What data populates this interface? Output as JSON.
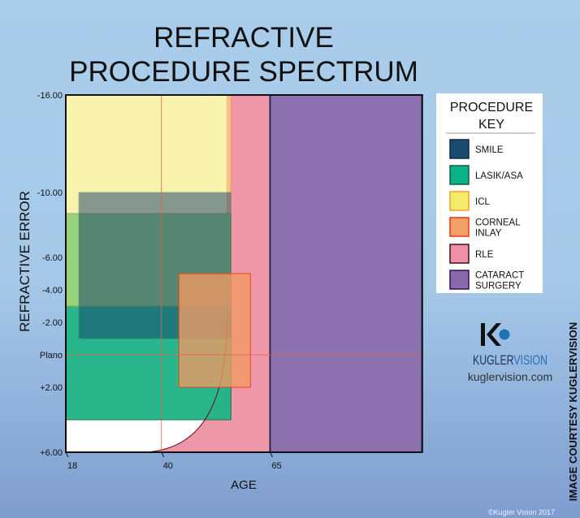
{
  "title_lines": [
    "REFRACTIVE",
    "PROCEDURE SPECTRUM"
  ],
  "chart_data": {
    "type": "region-diagram",
    "xlabel": "AGE",
    "ylabel": "REFRACTIVE ERROR",
    "xlim": [
      18,
      100
    ],
    "ylim": [
      -16,
      6
    ],
    "x_ticks": [
      {
        "value": 18,
        "label": "18"
      },
      {
        "value": 40,
        "label": "40"
      },
      {
        "value": 65,
        "label": "65"
      }
    ],
    "y_ticks": [
      {
        "value": -16,
        "label": "-16.00"
      },
      {
        "value": -10,
        "label": "-10.00"
      },
      {
        "value": -6,
        "label": "-6.00"
      },
      {
        "value": -4,
        "label": "-4.00"
      },
      {
        "value": -2,
        "label": "-2.00"
      },
      {
        "value": 0,
        "label": "Plano"
      },
      {
        "value": 2,
        "label": "+2.00"
      },
      {
        "value": 6,
        "label": "+6.00"
      }
    ],
    "reference_lines": {
      "age": 40,
      "refraction": 0
    },
    "regions": [
      {
        "name": "RLE",
        "age": [
          55,
          65
        ],
        "refraction": [
          -16,
          6
        ],
        "curve_from_age": 35,
        "color": "#ee97a8"
      },
      {
        "name": "LASIK/ASA",
        "age": [
          18,
          56
        ],
        "refraction": [
          -8.7,
          4
        ],
        "color": "#22b48a"
      },
      {
        "name": "ICL",
        "age": [
          18,
          56
        ],
        "refraction": [
          -16,
          -3
        ],
        "color": "#f4ea6c"
      },
      {
        "name": "SMILE",
        "age": [
          21,
          56
        ],
        "refraction": [
          -10,
          -1
        ],
        "color": "#173f6b"
      },
      {
        "name": "CORNEAL INLAY",
        "age": [
          44,
          60.5
        ],
        "refraction": [
          -5,
          2
        ],
        "color": "#f39a63"
      },
      {
        "name": "CATARACT SURGERY",
        "age": [
          65,
          100
        ],
        "refraction": [
          -16,
          6
        ],
        "color": "#8e72b0"
      }
    ]
  },
  "legend": {
    "title_lines": [
      "PROCEDURE",
      "KEY"
    ],
    "items": [
      {
        "lines": [
          "SMILE"
        ],
        "color": "#1b4a72",
        "border": "#102a40"
      },
      {
        "lines": [
          "LASIK/ASA"
        ],
        "color": "#0bb285",
        "border": "#1a5a3a"
      },
      {
        "lines": [
          "ICL"
        ],
        "color": "#f4ea6c",
        "border": "#f4a020"
      },
      {
        "lines": [
          "CORNEAL",
          "INLAY"
        ],
        "color": "#f2a067",
        "border": "#f03010"
      },
      {
        "lines": [
          "RLE"
        ],
        "color": "#ef8fa5",
        "border": "#40101a"
      },
      {
        "lines": [
          "CATARACT",
          "SURGERY"
        ],
        "color": "#8a68aa",
        "border": "#30105a"
      }
    ]
  },
  "logo": {
    "brand": "KUGLERVISION",
    "brand_a": "KUGLER",
    "brand_b": "VISION",
    "url": "kuglervision.com"
  },
  "credit": "IMAGE COURTESY KUGLERVISION",
  "copyright": "©Kugler Vision 2017"
}
